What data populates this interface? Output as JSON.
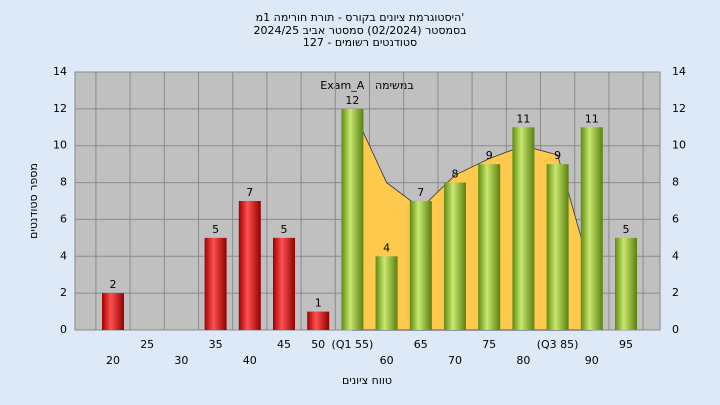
{
  "chart_data": {
    "type": "bar",
    "title": "'היסטוגרמת ציונים בקורס - תורת חורימה 1מ",
    "subtitle": "בסמסטר  (02/2024)  סמסטר אביב 2024/25",
    "subtitle2": "סטודנטים רשומים - 127",
    "annotation": "Exam_A : במשימה",
    "x_label": "טווח ציונים",
    "y_label": "מספר סטודנטים",
    "categories": [
      "20",
      "25",
      "30",
      "35",
      "40",
      "45",
      "50",
      "(Q1 55)",
      "60",
      "65",
      "70",
      "75",
      "80",
      "(Q3 85)",
      "90",
      "95"
    ],
    "series": [
      {
        "values": [
          2,
          0,
          0,
          5,
          7,
          5,
          1,
          12,
          4,
          7,
          8,
          9,
          11,
          9,
          11,
          5
        ],
        "colors": [
          "#e02020",
          "#e02020",
          "#e02020",
          "#e02020",
          "#e02020",
          "#e02020",
          "#e02020",
          "#8fc030",
          "#8fc030",
          "#8fc030",
          "#8fc030",
          "#8fc030",
          "#8fc030",
          "#8fc030",
          "#8fc030",
          "#8fc030"
        ]
      }
    ],
    "area": {
      "color": "#ffc94d",
      "values": [
        null,
        null,
        null,
        null,
        null,
        null,
        null,
        12,
        8,
        6.6,
        8.4,
        9.3,
        10,
        9.5,
        3,
        null
      ]
    },
    "ylim": [
      0,
      14
    ],
    "yticks": [
      0,
      2,
      4,
      6,
      8,
      10,
      12,
      14
    ],
    "y2lim": [
      0,
      14
    ],
    "y2ticks": [
      0,
      2,
      4,
      6,
      8,
      10,
      12,
      14
    ],
    "grid": true
  }
}
